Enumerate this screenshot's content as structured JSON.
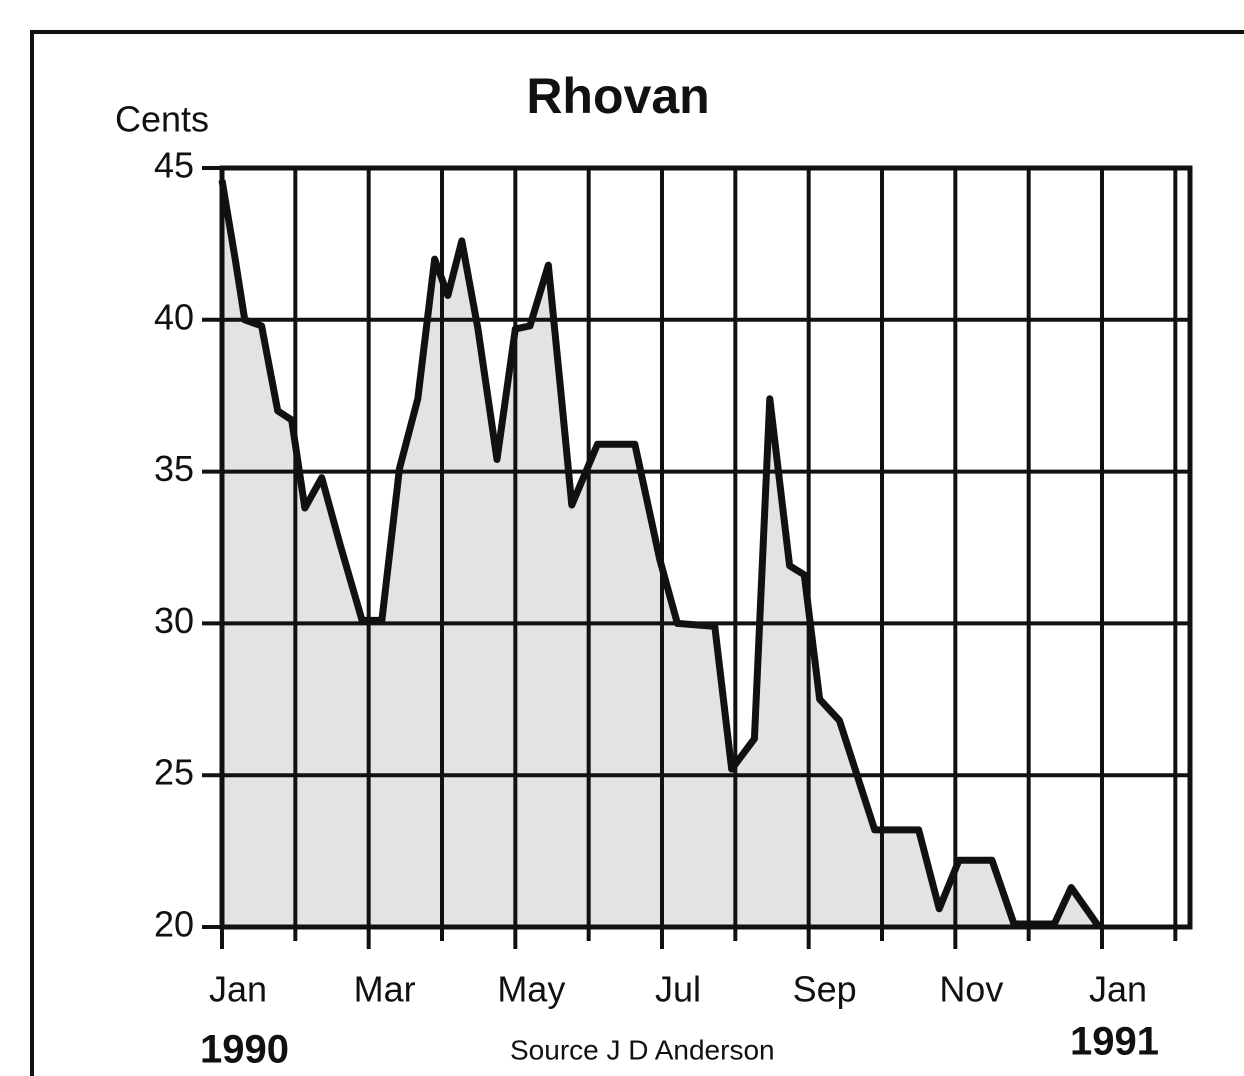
{
  "chart_data": {
    "type": "line",
    "title": "Rhovan",
    "y_label": "Cents",
    "x": [
      0,
      0.18,
      0.31,
      0.54,
      0.76,
      0.95,
      1.13,
      1.36,
      1.61,
      1.91,
      2.18,
      2.42,
      2.67,
      2.9,
      3.08,
      3.27,
      3.49,
      3.75,
      4.0,
      4.2,
      4.45,
      4.63,
      4.77,
      5.12,
      5.63,
      5.97,
      6.21,
      6.72,
      6.95,
      7.26,
      7.47,
      7.74,
      7.94,
      8.15,
      8.42,
      8.9,
      9.5,
      9.78,
      10.05,
      10.5,
      10.8,
      11.35,
      11.58,
      11.96
    ],
    "series": [
      {
        "name": "Rhovan",
        "color": "#111111",
        "fill": "#c8c8c8",
        "values": [
          44.6,
          42,
          40,
          39.8,
          37,
          36.7,
          33.8,
          34.8,
          32.6,
          30.1,
          30.1,
          35.1,
          37.4,
          42,
          40.8,
          42.6,
          39.7,
          35.4,
          39.7,
          39.8,
          41.8,
          37.4,
          33.9,
          35.9,
          35.9,
          32.1,
          30,
          29.9,
          25.2,
          26.2,
          37.4,
          31.9,
          31.6,
          27.5,
          26.8,
          23.2,
          23.2,
          20.6,
          22.2,
          22.2,
          20.1,
          20.1,
          21.3,
          20
        ]
      }
    ],
    "xlim": [
      0,
      13.2
    ],
    "ylim": [
      20,
      45
    ],
    "xticks": [
      {
        "value": 0,
        "label": "Jan"
      },
      {
        "value": 2,
        "label": "Mar"
      },
      {
        "value": 4,
        "label": "May"
      },
      {
        "value": 6,
        "label": "Jul"
      },
      {
        "value": 8,
        "label": "Sep"
      },
      {
        "value": 10,
        "label": "Nov"
      },
      {
        "value": 12,
        "label": "Jan"
      }
    ],
    "xminor": [
      1,
      3,
      5,
      7,
      9,
      11,
      13
    ],
    "yticks": [
      20,
      25,
      30,
      35,
      40,
      45
    ],
    "year_labels": [
      "1990",
      "1991"
    ],
    "source": "Source  J D Anderson",
    "grid": true
  }
}
